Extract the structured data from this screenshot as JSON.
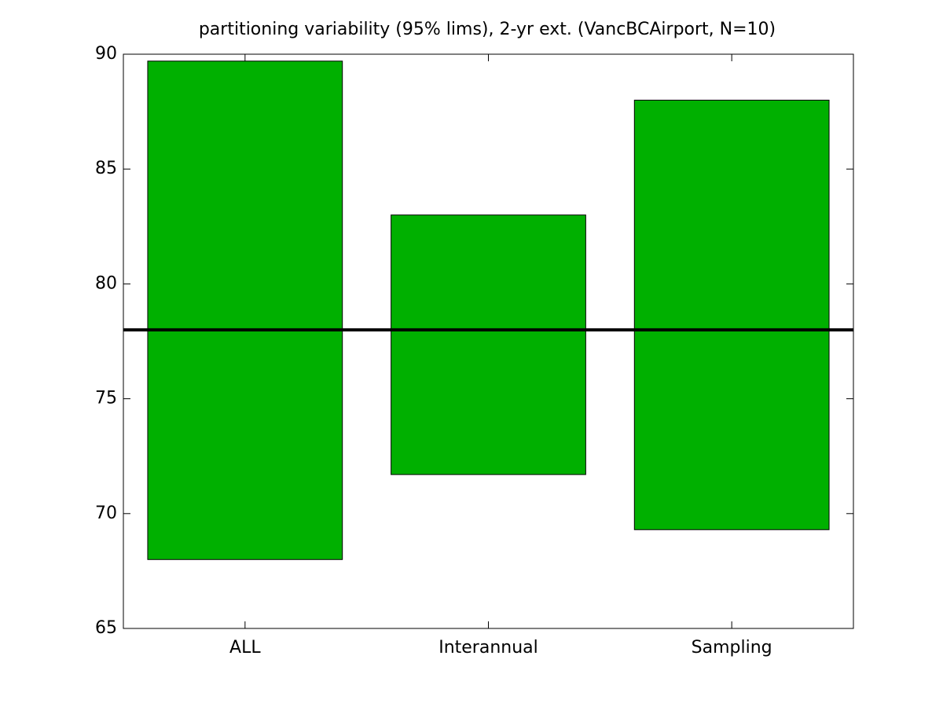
{
  "chart_data": {
    "type": "floating-bar",
    "title": "partitioning variability (95% lims), 2-yr ext. (VancBCAirport, N=10)",
    "categories": [
      "ALL",
      "Interannual",
      "Sampling"
    ],
    "low": [
      68.0,
      71.7,
      69.3
    ],
    "high": [
      89.7,
      83.0,
      88.0
    ],
    "color": "#00b000",
    "reference_line": 78.0,
    "reference_color": "#000000",
    "ylim": [
      65,
      90
    ],
    "yticks": [
      65,
      70,
      75,
      80,
      85,
      90
    ]
  }
}
